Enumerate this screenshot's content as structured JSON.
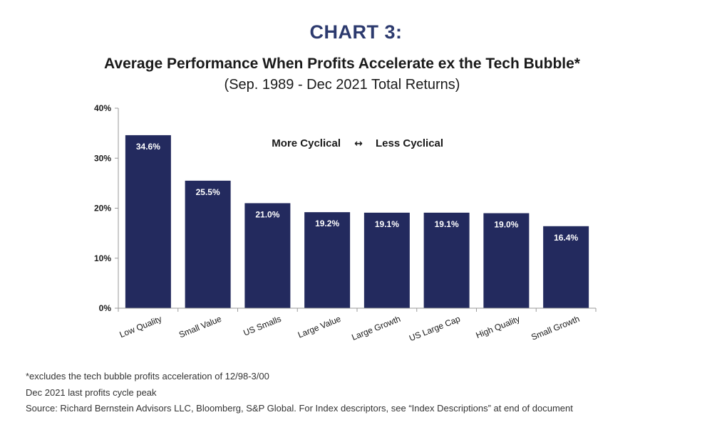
{
  "header": {
    "chart_label": "CHART 3:",
    "title": "Average Performance When Profits Accelerate ex the Tech Bubble*",
    "subtitle": "(Sep. 1989 - Dec 2021 Total Returns)"
  },
  "annotation": {
    "left": "More Cyclical",
    "arrow": "↔",
    "right": "Less Cyclical"
  },
  "chart_data": {
    "type": "bar",
    "title": "Average Performance When Profits Accelerate ex the Tech Bubble*",
    "subtitle": "(Sep. 1989 - Dec 2021 Total Returns)",
    "categories": [
      "Low Quality",
      "Small Value",
      "US Smalls",
      "Large Value",
      "Large Growth",
      "US Large Cap",
      "High Quality",
      "Small Growth"
    ],
    "values": [
      34.6,
      25.5,
      21.0,
      19.2,
      19.1,
      19.1,
      19.0,
      16.4
    ],
    "value_labels": [
      "34.6%",
      "25.5%",
      "21.0%",
      "19.2%",
      "19.1%",
      "19.1%",
      "19.0%",
      "16.4%"
    ],
    "ylim": [
      0,
      40
    ],
    "yticks": [
      0,
      10,
      20,
      30,
      40
    ],
    "ytick_labels": [
      "0%",
      "10%",
      "20%",
      "30%",
      "40%"
    ],
    "xlabel": "",
    "ylabel": "",
    "grid": false,
    "bar_color": "#232a5e",
    "label_color": "#ffffff"
  },
  "footnotes": [
    "*excludes the tech bubble profits acceleration of 12/98-3/00",
    "Dec 2021 last profits cycle peak",
    "Source: Richard Bernstein Advisors LLC, Bloomberg, S&P Global. For Index descriptors, see “Index Descriptions” at end of document"
  ]
}
